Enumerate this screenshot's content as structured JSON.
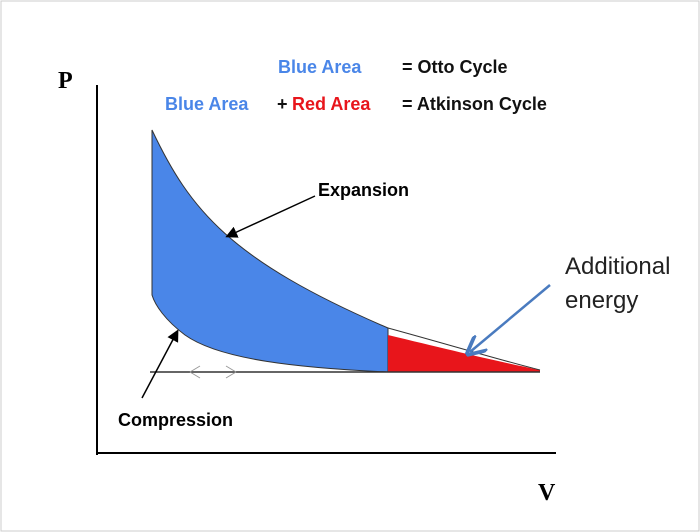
{
  "axes": {
    "y_label": "P",
    "x_label": "V"
  },
  "legend": {
    "line1": {
      "blue": "Blue Area",
      "equals": "= Otto Cycle"
    },
    "line2": {
      "blue": "Blue Area",
      "plus": "+",
      "red": "Red Area",
      "equals": "= Atkinson Cycle"
    }
  },
  "annotations": {
    "expansion": "Expansion",
    "compression": "Compression",
    "additional": [
      "Additional",
      "energy"
    ]
  }
}
